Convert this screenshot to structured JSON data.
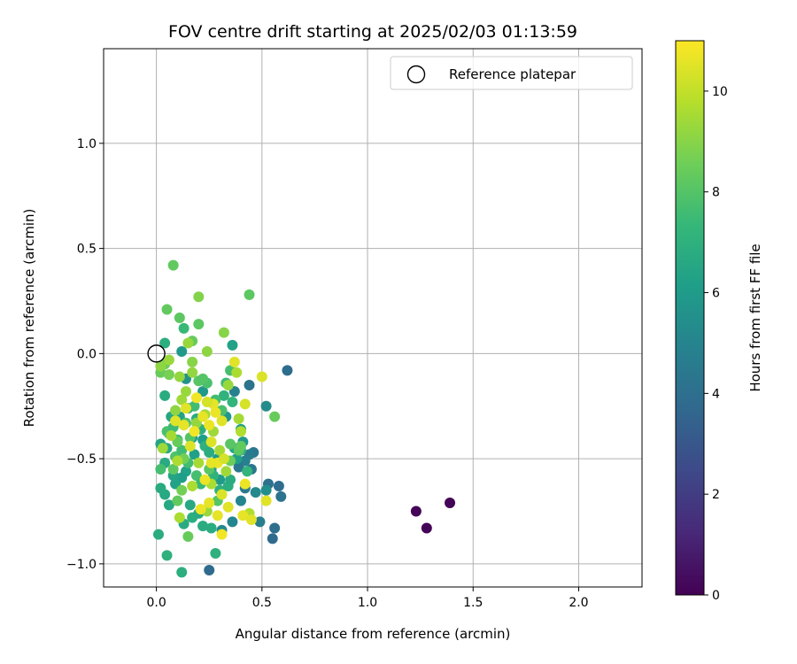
{
  "chart_data": {
    "type": "scatter",
    "title": "FOV centre drift starting at 2025/02/03 01:13:59",
    "xlabel": "Angular distance from reference (arcmin)",
    "ylabel": "Rotation from reference (arcmin)",
    "xlim": [
      -0.25,
      2.3
    ],
    "ylim": [
      -1.11,
      1.45
    ],
    "xticks": [
      0.0,
      0.5,
      1.0,
      1.5,
      2.0
    ],
    "xtick_labels": [
      "0.0",
      "0.5",
      "1.0",
      "1.5",
      "2.0"
    ],
    "yticks": [
      -1.0,
      -0.5,
      0.0,
      0.5,
      1.0
    ],
    "ytick_labels": [
      "−1.0",
      "−0.5",
      "0.0",
      "0.5",
      "1.0"
    ],
    "grid": true,
    "legend": {
      "placement": "top-right",
      "entries": [
        "Reference platepar"
      ]
    },
    "reference_point": {
      "x": 0.0,
      "y": 0.0,
      "marker": "hollow-circle"
    },
    "colorbar": {
      "label": "Hours from first FF file",
      "range": [
        0,
        11
      ],
      "ticks": [
        0,
        2,
        4,
        6,
        8,
        10
      ],
      "tick_labels": [
        "0",
        "2",
        "4",
        "6",
        "8",
        "10"
      ],
      "colormap": "viridis"
    },
    "colormap_stops": [
      "#440154",
      "#482878",
      "#3e4989",
      "#31688e",
      "#26828e",
      "#1f9e89",
      "#35b779",
      "#6ece58",
      "#b5de2b",
      "#fde725"
    ],
    "points": [
      [
        1.23,
        -0.75,
        0.1
      ],
      [
        1.28,
        -0.83,
        0.1
      ],
      [
        1.39,
        -0.71,
        0.1
      ],
      [
        0.25,
        -1.03,
        3.8
      ],
      [
        0.55,
        -0.88,
        3.8
      ],
      [
        0.56,
        -0.83,
        4.0
      ],
      [
        0.58,
        -0.63,
        3.9
      ],
      [
        0.59,
        -0.68,
        4.2
      ],
      [
        0.53,
        -0.62,
        4.1
      ],
      [
        0.62,
        -0.08,
        3.9
      ],
      [
        0.45,
        -0.55,
        4.3
      ],
      [
        0.46,
        -0.47,
        4.4
      ],
      [
        0.44,
        -0.48,
        4.6
      ],
      [
        0.49,
        -0.8,
        4.7
      ],
      [
        0.42,
        -0.51,
        4.8
      ],
      [
        0.42,
        -0.64,
        4.5
      ],
      [
        0.39,
        -0.54,
        4.4
      ],
      [
        0.4,
        -0.7,
        5.0
      ],
      [
        0.44,
        -0.15,
        4.2
      ],
      [
        0.37,
        -0.18,
        4.8
      ],
      [
        0.31,
        -0.84,
        5.2
      ],
      [
        0.36,
        -0.8,
        5.0
      ],
      [
        0.52,
        -0.25,
        5.3
      ],
      [
        0.52,
        -0.65,
        5.4
      ],
      [
        0.47,
        -0.66,
        5.2
      ],
      [
        0.14,
        -0.12,
        5.6
      ],
      [
        0.12,
        0.01,
        5.9
      ],
      [
        0.22,
        -0.18,
        5.9
      ],
      [
        0.26,
        -0.55,
        6.0
      ],
      [
        0.29,
        -0.5,
        6.0
      ],
      [
        0.33,
        -0.3,
        5.8
      ],
      [
        0.36,
        0.04,
        6.3
      ],
      [
        0.41,
        -0.42,
        5.9
      ],
      [
        0.4,
        -0.36,
        6.1
      ],
      [
        0.38,
        -0.5,
        6.2
      ],
      [
        0.37,
        -0.45,
        6.4
      ],
      [
        0.3,
        -0.6,
        6.0
      ],
      [
        0.22,
        -0.41,
        6.1
      ],
      [
        0.18,
        -0.48,
        6.2
      ],
      [
        0.17,
        -0.4,
        6.0
      ],
      [
        0.14,
        -0.56,
        6.3
      ],
      [
        0.12,
        -0.59,
        6.1
      ],
      [
        0.09,
        -0.62,
        6.3
      ],
      [
        0.08,
        -0.58,
        6.4
      ],
      [
        0.06,
        -0.72,
        6.6
      ],
      [
        0.04,
        -0.67,
        6.6
      ],
      [
        0.02,
        -0.64,
        6.7
      ],
      [
        0.01,
        -0.86,
        6.8
      ],
      [
        0.05,
        -0.96,
        7.0
      ],
      [
        0.12,
        -1.04,
        6.9
      ],
      [
        0.16,
        -0.72,
        6.6
      ],
      [
        0.13,
        -0.81,
        6.7
      ],
      [
        0.17,
        -0.78,
        6.9
      ],
      [
        0.2,
        -0.76,
        6.7
      ],
      [
        0.22,
        -0.82,
        6.8
      ],
      [
        0.26,
        -0.83,
        6.8
      ],
      [
        0.28,
        -0.95,
        7.0
      ],
      [
        0.04,
        -0.2,
        6.8
      ],
      [
        0.04,
        0.05,
        6.9
      ],
      [
        0.07,
        -0.3,
        6.5
      ],
      [
        0.06,
        -0.38,
        6.5
      ],
      [
        0.05,
        -0.45,
        6.6
      ],
      [
        0.04,
        -0.52,
        6.7
      ],
      [
        0.02,
        -0.43,
        6.4
      ],
      [
        0.11,
        -0.3,
        6.3
      ],
      [
        0.15,
        -0.26,
        6.6
      ],
      [
        0.19,
        -0.31,
        6.7
      ],
      [
        0.21,
        -0.36,
        6.9
      ],
      [
        0.23,
        -0.44,
        7.0
      ],
      [
        0.25,
        -0.47,
        6.8
      ],
      [
        0.27,
        -0.58,
        7.1
      ],
      [
        0.3,
        -0.65,
        7.0
      ],
      [
        0.34,
        -0.63,
        6.9
      ],
      [
        0.35,
        -0.6,
        6.8
      ],
      [
        0.32,
        -0.2,
        7.1
      ],
      [
        0.36,
        -0.23,
        7.2
      ],
      [
        0.4,
        -0.46,
        7.1
      ],
      [
        0.43,
        -0.56,
        7.2
      ],
      [
        0.13,
        0.12,
        7.4
      ],
      [
        0.1,
        -0.41,
        7.5
      ],
      [
        0.15,
        -0.52,
        7.6
      ],
      [
        0.18,
        -0.25,
        7.6
      ],
      [
        0.19,
        -0.58,
        7.7
      ],
      [
        0.21,
        -0.62,
        7.4
      ],
      [
        0.24,
        -0.14,
        7.8
      ],
      [
        0.28,
        -0.22,
        7.6
      ],
      [
        0.31,
        -0.27,
        7.8
      ],
      [
        0.33,
        -0.14,
        7.5
      ],
      [
        0.35,
        -0.08,
        7.7
      ],
      [
        0.05,
        -0.37,
        7.8
      ],
      [
        0.08,
        -0.35,
        7.5
      ],
      [
        0.02,
        -0.55,
        7.7
      ],
      [
        0.09,
        -0.49,
        7.9
      ],
      [
        0.12,
        -0.46,
        7.6
      ],
      [
        0.14,
        -0.33,
        7.9
      ],
      [
        0.16,
        -0.4,
        8.0
      ],
      [
        0.2,
        -0.13,
        8.1
      ],
      [
        0.22,
        -0.12,
        8.0
      ],
      [
        0.25,
        -0.55,
        8.1
      ],
      [
        0.29,
        -0.7,
        8.0
      ],
      [
        0.35,
        -0.43,
        8.1
      ],
      [
        0.39,
        -0.46,
        8.2
      ],
      [
        0.08,
        0.42,
        8.3
      ],
      [
        0.05,
        0.21,
        8.3
      ],
      [
        0.11,
        0.17,
        8.2
      ],
      [
        0.17,
        0.06,
        8.4
      ],
      [
        0.2,
        0.14,
        8.2
      ],
      [
        0.44,
        0.28,
        8.2
      ],
      [
        0.56,
        -0.3,
        8.4
      ],
      [
        0.4,
        -0.44,
        8.3
      ],
      [
        0.35,
        -0.51,
        8.5
      ],
      [
        0.1,
        -0.7,
        8.3
      ],
      [
        0.08,
        -0.55,
        8.2
      ],
      [
        0.12,
        -0.65,
        8.6
      ],
      [
        0.02,
        -0.09,
        8.4
      ],
      [
        0.04,
        -0.05,
        8.5
      ],
      [
        0.06,
        -0.1,
        8.7
      ],
      [
        0.1,
        -0.42,
        8.4
      ],
      [
        0.13,
        -0.5,
        8.6
      ],
      [
        0.15,
        -0.87,
        8.4
      ],
      [
        0.2,
        0.27,
        8.9
      ],
      [
        0.32,
        0.1,
        9.0
      ],
      [
        0.24,
        0.01,
        9.1
      ],
      [
        0.17,
        -0.04,
        9.0
      ],
      [
        0.17,
        -0.09,
        9.2
      ],
      [
        0.15,
        0.05,
        9.3
      ],
      [
        0.11,
        -0.11,
        9.2
      ],
      [
        0.06,
        -0.03,
        9.3
      ],
      [
        0.02,
        -0.06,
        9.1
      ],
      [
        0.09,
        -0.27,
        9.1
      ],
      [
        0.12,
        -0.22,
        9.4
      ],
      [
        0.14,
        -0.18,
        9.3
      ],
      [
        0.19,
        -0.33,
        9.2
      ],
      [
        0.23,
        -0.29,
        9.5
      ],
      [
        0.27,
        -0.37,
        9.4
      ],
      [
        0.3,
        -0.46,
        9.5
      ],
      [
        0.33,
        -0.56,
        9.4
      ],
      [
        0.2,
        -0.52,
        9.5
      ],
      [
        0.17,
        -0.63,
        9.6
      ],
      [
        0.1,
        -0.51,
        9.6
      ],
      [
        0.03,
        -0.45,
        9.4
      ],
      [
        0.07,
        -0.39,
        9.5
      ],
      [
        0.11,
        -0.78,
        9.6
      ],
      [
        0.24,
        -0.75,
        9.3
      ],
      [
        0.26,
        -0.62,
        9.6
      ],
      [
        0.39,
        -0.31,
        9.5
      ],
      [
        0.38,
        -0.09,
        9.6
      ],
      [
        0.34,
        -0.15,
        9.3
      ],
      [
        0.4,
        -0.37,
        9.7
      ],
      [
        0.44,
        -0.76,
        9.7
      ],
      [
        0.5,
        -0.11,
        10.4
      ],
      [
        0.42,
        -0.24,
        10.3
      ],
      [
        0.37,
        -0.04,
        10.5
      ],
      [
        0.27,
        -0.24,
        10.6
      ],
      [
        0.31,
        -0.32,
        10.5
      ],
      [
        0.26,
        -0.42,
        10.4
      ],
      [
        0.29,
        -0.52,
        10.7
      ],
      [
        0.32,
        -0.5,
        10.3
      ],
      [
        0.26,
        -0.52,
        10.6
      ],
      [
        0.23,
        -0.6,
        10.7
      ],
      [
        0.31,
        -0.67,
        10.4
      ],
      [
        0.34,
        -0.73,
        10.5
      ],
      [
        0.29,
        -0.77,
        10.6
      ],
      [
        0.25,
        -0.71,
        10.6
      ],
      [
        0.21,
        -0.74,
        10.7
      ],
      [
        0.31,
        -0.86,
        10.8
      ],
      [
        0.41,
        -0.77,
        10.6
      ],
      [
        0.45,
        -0.79,
        10.5
      ],
      [
        0.42,
        -0.62,
        10.7
      ],
      [
        0.52,
        -0.7,
        10.5
      ],
      [
        0.09,
        -0.32,
        10.5
      ],
      [
        0.13,
        -0.34,
        10.6
      ],
      [
        0.16,
        -0.44,
        10.4
      ],
      [
        0.19,
        -0.21,
        10.8
      ],
      [
        0.22,
        -0.3,
        10.6
      ],
      [
        0.25,
        -0.34,
        10.7
      ],
      [
        0.18,
        -0.37,
        10.8
      ],
      [
        0.24,
        -0.23,
        10.3
      ],
      [
        0.28,
        -0.28,
        10.7
      ],
      [
        0.14,
        -0.26,
        10.5
      ]
    ]
  }
}
